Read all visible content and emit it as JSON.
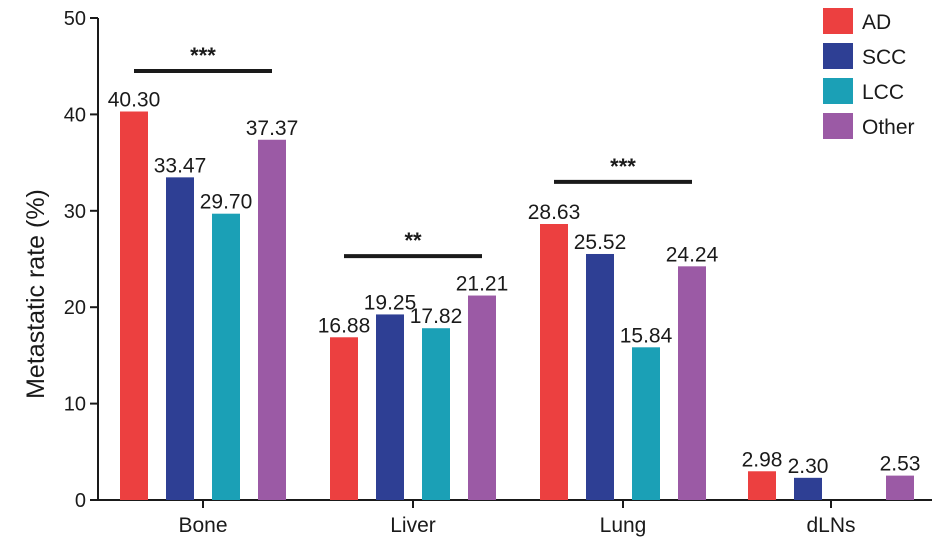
{
  "chart_data": {
    "type": "bar",
    "ylabel": "Metastatic rate (%)",
    "xlabel": "",
    "ylim": [
      0,
      50
    ],
    "yticks": [
      "0",
      "10",
      "20",
      "30",
      "40",
      "50"
    ],
    "categories": [
      "Bone",
      "Liver",
      "Lung",
      "dLNs"
    ],
    "series": [
      {
        "name": "AD",
        "color": "#ec4040",
        "values": [
          40.3,
          16.88,
          28.63,
          2.98
        ],
        "labels": [
          "40.30",
          "16.88",
          "28.63",
          "2.98"
        ]
      },
      {
        "name": "SCC",
        "color": "#2e3f94",
        "values": [
          33.47,
          19.25,
          25.52,
          2.3
        ],
        "labels": [
          "33.47",
          "19.25",
          "25.52",
          "2.30"
        ]
      },
      {
        "name": "LCC",
        "color": "#1ba0b6",
        "values": [
          29.7,
          17.82,
          15.84,
          null
        ],
        "labels": [
          "29.70",
          "17.82",
          "15.84",
          ""
        ]
      },
      {
        "name": "Other",
        "color": "#9b5aa5",
        "values": [
          37.37,
          21.21,
          24.24,
          2.53
        ],
        "labels": [
          "37.37",
          "21.21",
          "24.24",
          "2.53"
        ]
      }
    ],
    "significance": [
      {
        "category": "Bone",
        "label": "***",
        "y": 44.5
      },
      {
        "category": "Liver",
        "label": "**",
        "y": 25.3
      },
      {
        "category": "Lung",
        "label": "***",
        "y": 33.0
      }
    ],
    "legend_position": "top-right",
    "grid": false
  }
}
